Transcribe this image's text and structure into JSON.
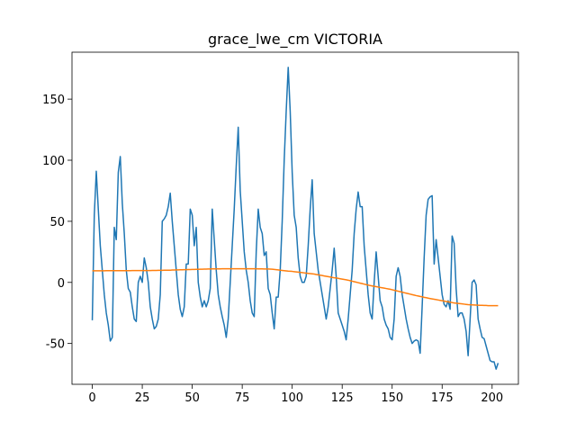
{
  "chart_data": {
    "type": "line",
    "title": "grace_lwe_cm VICTORIA",
    "x": [
      0,
      1,
      2,
      3,
      4,
      5,
      6,
      7,
      8,
      9,
      10,
      11,
      12,
      13,
      14,
      15,
      16,
      17,
      18,
      19,
      20,
      21,
      22,
      23,
      24,
      25,
      26,
      27,
      28,
      29,
      30,
      31,
      32,
      33,
      34,
      35,
      36,
      37,
      38,
      39,
      40,
      41,
      42,
      43,
      44,
      45,
      46,
      47,
      48,
      49,
      50,
      51,
      52,
      53,
      54,
      55,
      56,
      57,
      58,
      59,
      60,
      61,
      62,
      63,
      64,
      65,
      66,
      67,
      68,
      69,
      70,
      71,
      72,
      73,
      74,
      75,
      76,
      77,
      78,
      79,
      80,
      81,
      82,
      83,
      84,
      85,
      86,
      87,
      88,
      89,
      90,
      91,
      92,
      93,
      94,
      95,
      96,
      97,
      98,
      99,
      100,
      101,
      102,
      103,
      104,
      105,
      106,
      107,
      108,
      109,
      110,
      111,
      112,
      113,
      114,
      115,
      116,
      117,
      118,
      119,
      120,
      121,
      122,
      123,
      124,
      125,
      126,
      127,
      128,
      129,
      130,
      131,
      132,
      133,
      134,
      135,
      136,
      137,
      138,
      139,
      140,
      141,
      142,
      143,
      144,
      145,
      146,
      147,
      148,
      149,
      150,
      151,
      152,
      153,
      154,
      155,
      156,
      157,
      158,
      159,
      160,
      161,
      162,
      163,
      164,
      165,
      166,
      167,
      168,
      169,
      170,
      171,
      172,
      173,
      174,
      175,
      176,
      177,
      178,
      179,
      180,
      181,
      182,
      183,
      184,
      185,
      186,
      187,
      188,
      189,
      190,
      191,
      192,
      193,
      194,
      195,
      196,
      197,
      198,
      199,
      200,
      201,
      202,
      203
    ],
    "series": [
      {
        "color": "#1f77b4",
        "values": [
          -31,
          55,
          91,
          60,
          30,
          10,
          -10,
          -25,
          -35,
          -48,
          -45,
          45,
          35,
          90,
          103,
          65,
          40,
          10,
          -5,
          -8,
          -20,
          -30,
          -32,
          0,
          5,
          0,
          20,
          12,
          0,
          -20,
          -30,
          -38,
          -36,
          -30,
          -10,
          50,
          52,
          55,
          62,
          73,
          50,
          30,
          10,
          -10,
          -22,
          -28,
          -20,
          15,
          15,
          60,
          55,
          30,
          45,
          0,
          -12,
          -20,
          -15,
          -20,
          -15,
          -5,
          60,
          35,
          10,
          -10,
          -20,
          -28,
          -35,
          -45,
          -30,
          0,
          30,
          60,
          95,
          127,
          75,
          50,
          25,
          10,
          0,
          -15,
          -25,
          -28,
          25,
          60,
          45,
          40,
          22,
          25,
          -5,
          -10,
          -25,
          -38,
          -12,
          -12,
          10,
          50,
          100,
          140,
          176,
          140,
          90,
          55,
          45,
          20,
          5,
          0,
          0,
          5,
          30,
          60,
          84,
          40,
          25,
          10,
          0,
          -10,
          -20,
          -30,
          -20,
          -5,
          10,
          28,
          5,
          -25,
          -30,
          -35,
          -40,
          -47,
          -30,
          -10,
          10,
          40,
          60,
          74,
          62,
          62,
          30,
          10,
          -10,
          -25,
          -30,
          0,
          25,
          5,
          -15,
          -20,
          -30,
          -35,
          -38,
          -45,
          -47,
          -30,
          5,
          12,
          5,
          -10,
          -20,
          -30,
          -38,
          -45,
          -50,
          -48,
          -47,
          -48,
          -58,
          -20,
          20,
          55,
          68,
          70,
          71,
          15,
          35,
          20,
          5,
          -10,
          -18,
          -20,
          -15,
          -22,
          38,
          32,
          -5,
          -28,
          -25,
          -25,
          -30,
          -40,
          -60,
          -30,
          0,
          2,
          -2,
          -30,
          -38,
          -45,
          -46,
          -52,
          -58,
          -64,
          -65,
          -65,
          -71,
          -66
        ]
      },
      {
        "color": "#ff7f0e",
        "values": [
          9.5,
          9.5,
          9.5,
          9.5,
          9.5,
          9.5,
          9.5,
          9.6,
          9.6,
          9.6,
          9.6,
          9.6,
          9.6,
          9.6,
          9.6,
          9.6,
          9.6,
          9.6,
          9.6,
          9.6,
          9.7,
          9.7,
          9.7,
          9.7,
          9.7,
          9.7,
          9.7,
          9.7,
          9.7,
          9.7,
          9.8,
          9.8,
          9.8,
          9.9,
          9.9,
          9.9,
          10,
          10,
          10,
          10,
          10.1,
          10.1,
          10.2,
          10.2,
          10.3,
          10.3,
          10.4,
          10.4,
          10.5,
          10.5,
          10.6,
          10.6,
          10.7,
          10.7,
          10.8,
          10.8,
          10.9,
          10.9,
          11,
          11,
          11.1,
          11.1,
          11.1,
          11.1,
          11.1,
          11.2,
          11.2,
          11.2,
          11.2,
          11.2,
          11.2,
          11.2,
          11.2,
          11.2,
          11.2,
          11.2,
          11.2,
          11.2,
          11.2,
          11.2,
          11.2,
          11.2,
          11.2,
          11.1,
          11.1,
          11.1,
          11,
          11,
          11,
          10.9,
          10.8,
          10.6,
          10.4,
          10.2,
          10,
          9.8,
          9.6,
          9.4,
          9.2,
          9.1,
          9,
          8.8,
          8.6,
          8.4,
          8.2,
          8,
          7.8,
          7.6,
          7.4,
          7.2,
          7,
          6.8,
          6.5,
          6.2,
          5.9,
          5.6,
          5.3,
          5,
          4.7,
          4.4,
          4.1,
          3.8,
          3.6,
          3.3,
          3,
          2.7,
          2.4,
          2.1,
          1.8,
          1.4,
          1,
          0.6,
          0.2,
          -0.2,
          -0.6,
          -1,
          -1.4,
          -1.8,
          -2.2,
          -2.6,
          -2.9,
          -3.2,
          -3.5,
          -3.8,
          -4.1,
          -4.4,
          -4.7,
          -5,
          -5.3,
          -5.6,
          -6,
          -6.4,
          -6.8,
          -7.2,
          -7.6,
          -8,
          -8.4,
          -8.8,
          -9.2,
          -9.6,
          -10,
          -10.4,
          -10.8,
          -11.1,
          -11.5,
          -11.8,
          -12.2,
          -12.5,
          -12.9,
          -13.2,
          -13.5,
          -13.8,
          -14.1,
          -14.4,
          -14.7,
          -15,
          -15.3,
          -15.6,
          -15.9,
          -16.2,
          -16.5,
          -16.8,
          -17,
          -17.2,
          -17.4,
          -17.6,
          -17.8,
          -18,
          -18.2,
          -18.3,
          -18.4,
          -18.5,
          -18.6,
          -18.7,
          -18.8,
          -18.8,
          -18.9,
          -18.9,
          -19,
          -19,
          -19,
          -19,
          -19,
          -19
        ]
      }
    ],
    "xlim": [
      -10.15,
      213.15
    ],
    "ylim": [
      -83.4,
      188.4
    ],
    "xticks": [
      0,
      25,
      50,
      75,
      100,
      125,
      150,
      175,
      200
    ],
    "yticks": [
      -50,
      0,
      50,
      100,
      150
    ]
  }
}
